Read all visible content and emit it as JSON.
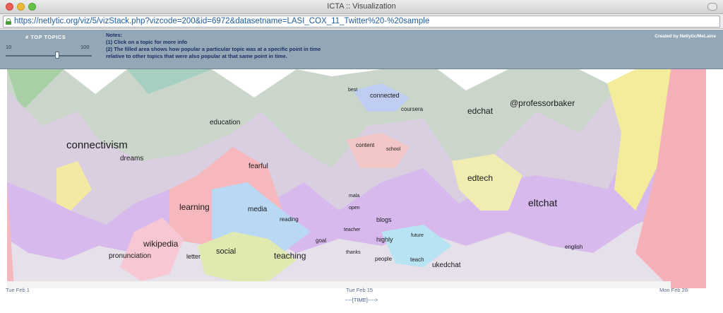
{
  "window": {
    "title": "ICTA :: Visualization"
  },
  "address_bar": {
    "url": "https://netlytic.org/viz/5/vizStack.php?vizcode=200&id=6972&datasetname=LASI_COX_11_Twitter%20-%20sample"
  },
  "controls": {
    "slider_label": "# TOP TOPICS",
    "slider_min": "10",
    "slider_max": "100",
    "slider_value_fraction": 0.6,
    "credit": "Created by Netlytic/MeLaine"
  },
  "notes": {
    "heading": "Notes:",
    "line1": "(1) Click on a topic for more info",
    "line2": "(2) The filled area shows how popular a particular topic was at a specific point in time",
    "line3": "relative to other topics that were also popular at that same point in time."
  },
  "chart_data": {
    "type": "area",
    "x_labels": [
      "Tue Feb 1",
      "Tue Feb 15",
      "Mon Feb 28"
    ],
    "x_axis_title": "----[TIME]---->",
    "topics": [
      {
        "label": "connectivism",
        "color": "#d9cfe0"
      },
      {
        "label": "dreams",
        "color": "#f2e6c6"
      },
      {
        "label": "education",
        "color": "#cfeee3"
      },
      {
        "label": "fearful",
        "color": "#d7b9ee"
      },
      {
        "label": "learning",
        "color": "#f6b7bd"
      },
      {
        "label": "media",
        "color": "#b8d8f3"
      },
      {
        "label": "wikipedia",
        "color": "#f7c8d3"
      },
      {
        "label": "pronunciation",
        "color": "#d9b6ef"
      },
      {
        "label": "letter",
        "color": "#efe7c5"
      },
      {
        "label": "social",
        "color": "#e0eab0"
      },
      {
        "label": "teaching",
        "color": "#c9ebda"
      },
      {
        "label": "reading",
        "color": "#e6ded9"
      },
      {
        "label": "goal",
        "color": "#ccd2f3"
      },
      {
        "label": "connected",
        "color": "#b8c9f3"
      },
      {
        "label": "coursera",
        "color": "#d6b4ec"
      },
      {
        "label": "edchat",
        "color": "#b9b9b9"
      },
      {
        "label": "@professorbaker",
        "color": "#ece3ec"
      },
      {
        "label": "edtech",
        "color": "#f1ecb1"
      },
      {
        "label": "eltchat",
        "color": "#d5b3ef"
      },
      {
        "label": "english",
        "color": "#d8b6ee"
      },
      {
        "label": "ukedchat",
        "color": "#d8d8d8"
      },
      {
        "label": "blogs",
        "color": "#d8f3cc"
      },
      {
        "label": "highly",
        "color": "#c7efd1"
      },
      {
        "label": "people",
        "color": "#c0dcf3"
      },
      {
        "label": "teach",
        "color": "#b8e3f3"
      },
      {
        "label": "future",
        "color": "#d8ead3"
      },
      {
        "label": "teacher",
        "color": "#c9ead8"
      },
      {
        "label": "open",
        "color": "#e8d1e6"
      },
      {
        "label": "mala",
        "color": "#d7d7d7"
      },
      {
        "label": "thanks",
        "color": "#d9d9d9"
      },
      {
        "label": "best",
        "color": "#f3b8c0"
      },
      {
        "label": "content",
        "color": "#f2c6c6"
      },
      {
        "label": "school",
        "color": "#cfeec8"
      }
    ]
  }
}
